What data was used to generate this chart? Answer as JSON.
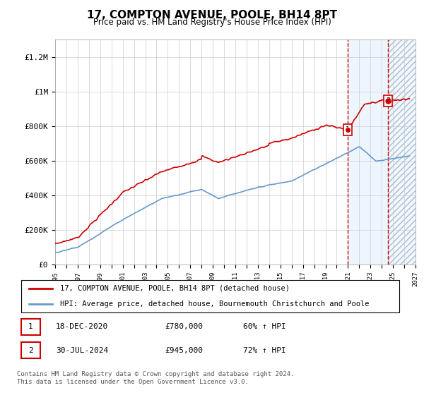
{
  "title": "17, COMPTON AVENUE, POOLE, BH14 8PT",
  "subtitle": "Price paid vs. HM Land Registry's House Price Index (HPI)",
  "legend_line1": "17, COMPTON AVENUE, POOLE, BH14 8PT (detached house)",
  "legend_line2": "HPI: Average price, detached house, Bournemouth Christchurch and Poole",
  "annotation1_label": "1",
  "annotation1_date": "18-DEC-2020",
  "annotation1_price": "£780,000",
  "annotation1_hpi": "60% ↑ HPI",
  "annotation1_year": 2020.96,
  "annotation1_value": 780000,
  "annotation2_label": "2",
  "annotation2_date": "30-JUL-2024",
  "annotation2_price": "£945,000",
  "annotation2_hpi": "72% ↑ HPI",
  "annotation2_year": 2024.58,
  "annotation2_value": 945000,
  "footer": "Contains HM Land Registry data © Crown copyright and database right 2024.\nThis data is licensed under the Open Government Licence v3.0.",
  "ylim": [
    0,
    1300000
  ],
  "xlim_start": 1995,
  "xlim_end": 2027,
  "red_color": "#cc0000",
  "blue_color": "#6699cc",
  "shade_color": "#ddeeff",
  "hatch_color": "#aabbcc",
  "grid_color": "#cccccc",
  "background_color": "#ffffff"
}
